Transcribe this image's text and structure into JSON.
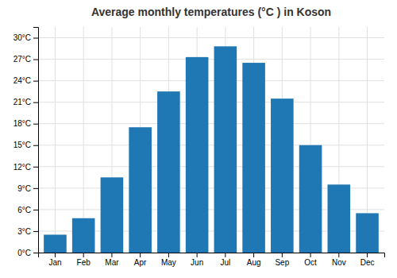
{
  "chart_data": {
    "type": "bar",
    "title": "Average monthly temperatures (°C ) in Koson",
    "categories": [
      "Jan",
      "Feb",
      "Mar",
      "Apr",
      "May",
      "Jun",
      "Jul",
      "Aug",
      "Sep",
      "Oct",
      "Nov",
      "Dec"
    ],
    "values": [
      2.5,
      4.8,
      10.5,
      17.5,
      22.5,
      27.3,
      28.8,
      26.5,
      21.5,
      15.0,
      9.5,
      5.5
    ],
    "ylim": [
      0,
      31.5
    ],
    "yticks": [
      {
        "value": 0,
        "label": "0°C"
      },
      {
        "value": 3,
        "label": "3°C"
      },
      {
        "value": 6,
        "label": "6°C"
      },
      {
        "value": 9,
        "label": "9°C"
      },
      {
        "value": 12,
        "label": "12°C"
      },
      {
        "value": 15,
        "label": "15°C"
      },
      {
        "value": 18,
        "label": "18°C"
      },
      {
        "value": 21,
        "label": "21°C"
      },
      {
        "value": 24,
        "label": "24°C"
      },
      {
        "value": 27,
        "label": "27°C"
      },
      {
        "value": 30,
        "label": "30°C"
      }
    ],
    "grid": true
  }
}
